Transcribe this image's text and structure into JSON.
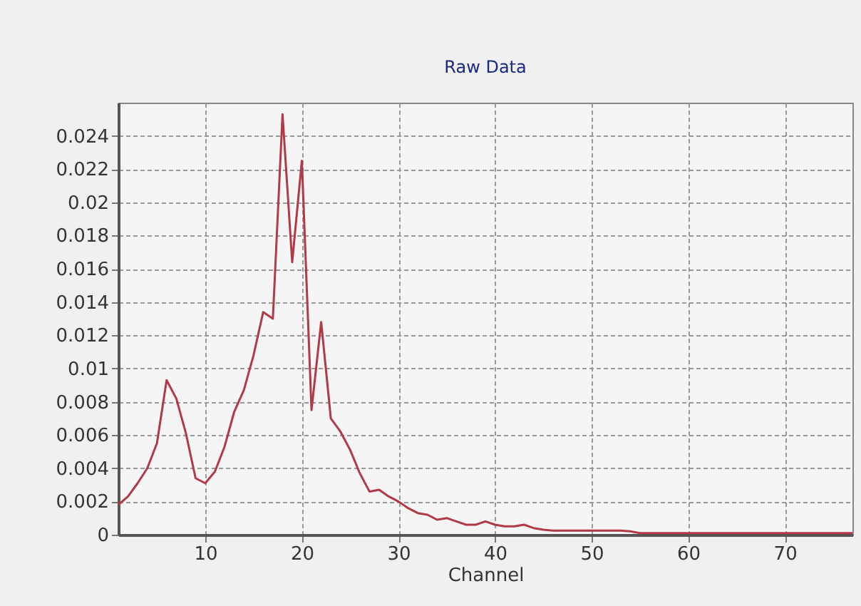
{
  "chart_data": {
    "type": "line",
    "title": "Raw Data",
    "xlabel": "Channel",
    "x": [
      1,
      2,
      3,
      4,
      5,
      6,
      7,
      8,
      9,
      10,
      11,
      12,
      13,
      14,
      15,
      16,
      17,
      18,
      19,
      20,
      21,
      22,
      23,
      24,
      25,
      26,
      27,
      28,
      29,
      30,
      31,
      32,
      33,
      34,
      35,
      36,
      37,
      38,
      39,
      40,
      41,
      42,
      43,
      44,
      45,
      46,
      47,
      48,
      49,
      50,
      51,
      52,
      53,
      54,
      55,
      56,
      57,
      58,
      59,
      60,
      61,
      62,
      63,
      64,
      65,
      66,
      67,
      68,
      69,
      70,
      71,
      72,
      73,
      74,
      75,
      76,
      77
    ],
    "series": [
      {
        "color": "#b03a48",
        "values": [
          0.0018,
          0.0023,
          0.0031,
          0.004,
          0.0055,
          0.0093,
          0.0082,
          0.0061,
          0.0034,
          0.0031,
          0.0038,
          0.0053,
          0.0074,
          0.0087,
          0.0108,
          0.0134,
          0.013,
          0.0253,
          0.0164,
          0.0225,
          0.0075,
          0.0128,
          0.007,
          0.0062,
          0.0051,
          0.0037,
          0.0026,
          0.0027,
          0.0023,
          0.002,
          0.0016,
          0.0013,
          0.0012,
          0.0009,
          0.001,
          0.0008,
          0.0006,
          0.0006,
          0.0008,
          0.0006,
          0.0005,
          0.0005,
          0.0006,
          0.0004,
          0.0003,
          0.00025,
          0.00025,
          0.00025,
          0.00025,
          0.00025,
          0.00025,
          0.00025,
          0.00025,
          0.0002,
          0.0001,
          0.0001,
          0.0001,
          0.0001,
          0.0001,
          0.0001,
          0.0001,
          0.0001,
          0.0001,
          0.0001,
          0.0001,
          0.0001,
          0.0001,
          0.0001,
          0.0001,
          0.0001,
          0.0001,
          0.0001,
          0.0001,
          0.0001,
          0.0001,
          0.0001,
          0.0001
        ]
      }
    ],
    "xlim": [
      1,
      77
    ],
    "xticks": [
      10,
      20,
      30,
      40,
      50,
      60,
      70
    ],
    "ylim": [
      0,
      0.026
    ],
    "yticks": [
      0,
      0.002,
      0.004,
      0.006,
      0.008,
      0.01,
      0.012,
      0.014,
      0.016,
      0.018,
      0.02,
      0.022,
      0.024
    ],
    "grid": true,
    "marker": "none",
    "line_style": "solid"
  }
}
